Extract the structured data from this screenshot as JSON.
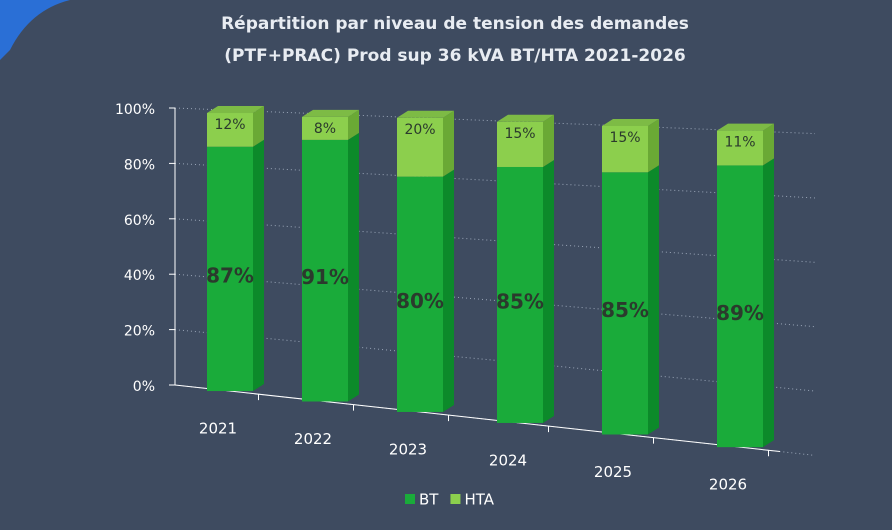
{
  "chart_data": {
    "type": "stacked_bar_3d",
    "title": [
      "Répartition  par niveau de tension des demandes",
      "(PTF+PRAC)  Prod sup 36 kVA BT/HTA  2021-2026"
    ],
    "categories": [
      "2021",
      "2022",
      "2023",
      "2024",
      "2025",
      "2026"
    ],
    "series": [
      {
        "name": "BT",
        "color": "#1aab3a",
        "values": [
          87,
          91,
          80,
          85,
          85,
          89
        ],
        "value_labels": [
          "87%",
          "91%",
          "80%",
          "85%",
          "85%",
          "89%"
        ]
      },
      {
        "name": "HTA",
        "color": "#8ccf4d",
        "values": [
          12,
          8,
          20,
          15,
          15,
          11
        ],
        "value_labels": [
          "12%",
          "8%",
          "20%",
          "15%",
          "15%",
          "11%"
        ]
      }
    ],
    "ylim": [
      0,
      100
    ],
    "yticks": [
      {
        "value": 0,
        "label": "0%"
      },
      {
        "value": 20,
        "label": "20%"
      },
      {
        "value": 40,
        "label": "40%"
      },
      {
        "value": 60,
        "label": "60%"
      },
      {
        "value": 80,
        "label": "80%"
      },
      {
        "value": 100,
        "label": "100%"
      }
    ],
    "grid": true,
    "legend": "bottom"
  }
}
